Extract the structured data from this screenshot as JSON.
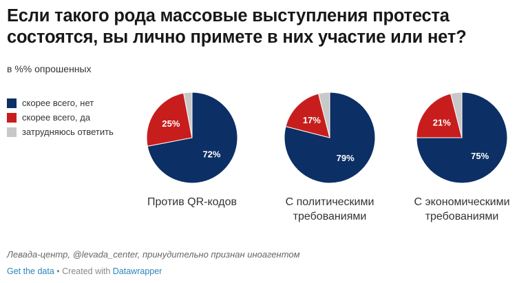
{
  "title": "Если такого рода массовые выступления протеста состоятся, вы лично примете в них участие или нет?",
  "subtitle": "в %% опрошенных",
  "colors": {
    "no": "#0c2f65",
    "yes": "#c71e1d",
    "undecided": "#c8c8c8"
  },
  "legend": [
    {
      "label": "скорее всего, нет",
      "key": "no"
    },
    {
      "label": "скорее всего, да",
      "key": "yes"
    },
    {
      "label": "затрудняюсь ответить",
      "key": "undecided"
    }
  ],
  "chart_data": [
    {
      "type": "pie",
      "title": "Против QR-кодов",
      "slices": [
        {
          "name": "скорее всего, нет",
          "value": 72,
          "label": "72%"
        },
        {
          "name": "скорее всего, да",
          "value": 25,
          "label": "25%"
        },
        {
          "name": "затрудняюсь ответить",
          "value": 3,
          "label": ""
        }
      ]
    },
    {
      "type": "pie",
      "title": "С политическими требованиями",
      "slices": [
        {
          "name": "скорее всего, нет",
          "value": 79,
          "label": "79%"
        },
        {
          "name": "скорее всего, да",
          "value": 17,
          "label": "17%"
        },
        {
          "name": "затрудняюсь ответить",
          "value": 4,
          "label": ""
        }
      ]
    },
    {
      "type": "pie",
      "title": "С экономическими требованиями",
      "slices": [
        {
          "name": "скорее всего, нет",
          "value": 75,
          "label": "75%"
        },
        {
          "name": "скорее всего, да",
          "value": 21,
          "label": "21%"
        },
        {
          "name": "затрудняюсь ответить",
          "value": 4,
          "label": ""
        }
      ]
    }
  ],
  "source": "Левада-центр, @levada_center, принудительно признан иноагентом",
  "footer": {
    "get_data": "Get the data",
    "separator": " • Created with ",
    "datawrapper": "Datawrapper"
  }
}
